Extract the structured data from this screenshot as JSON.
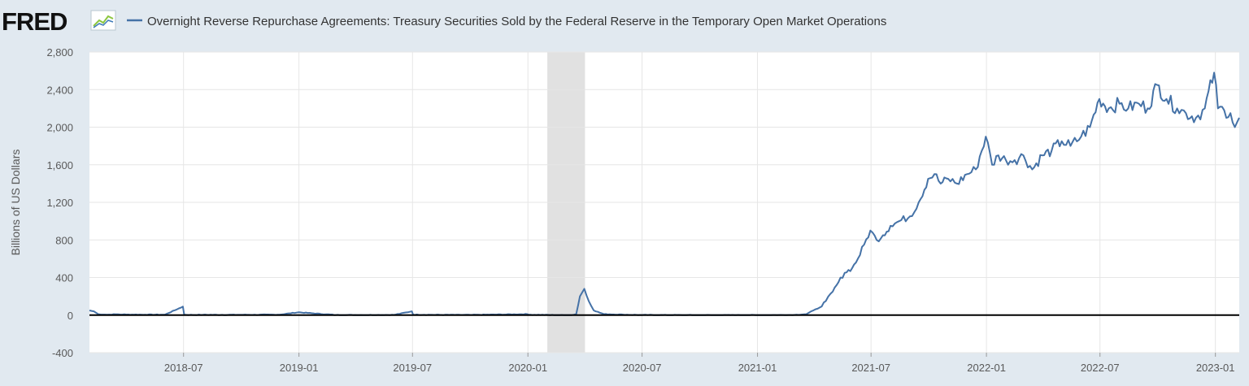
{
  "header": {
    "logo_text": "FRED",
    "logo_icon": "line-chart-icon"
  },
  "chart_data": {
    "type": "line",
    "title": "Overnight Reverse Repurchase Agreements: Treasury Securities Sold by the Federal Reserve in the Temporary Open Market Operations",
    "ylabel": "Billions of US Dollars",
    "xlabel": "",
    "ylim": [
      -400,
      2800
    ],
    "xlim": [
      "2018-02-01",
      "2023-02-08"
    ],
    "yticks": [
      -400,
      0,
      400,
      800,
      1200,
      1600,
      2000,
      2400,
      2800
    ],
    "ytick_labels": [
      "-400",
      "0",
      "400",
      "800",
      "1,200",
      "1,600",
      "2,000",
      "2,400",
      "2,800"
    ],
    "xticks": [
      "2018-07-01",
      "2019-01-01",
      "2019-07-01",
      "2020-01-01",
      "2020-07-01",
      "2021-01-01",
      "2021-07-01",
      "2022-01-01",
      "2022-07-01",
      "2023-01-01"
    ],
    "xtick_labels": [
      "2018-07",
      "2019-01",
      "2019-07",
      "2020-01",
      "2020-07",
      "2021-01",
      "2021-07",
      "2022-01",
      "2022-07",
      "2023-01"
    ],
    "grid": true,
    "legend": "top-left",
    "recession": {
      "start": "2020-02-01",
      "end": "2020-04-01"
    },
    "colors": {
      "line": "#4572a7",
      "recession": "#e1e1e1",
      "zero_line": "#000000",
      "background": "#e1e9f0",
      "plot": "#ffffff",
      "grid": "#e6e6e6"
    },
    "series": [
      {
        "name": "Overnight Reverse Repurchase Agreements: Treasury Securities Sold by the Federal Reserve in the Temporary Open Market Operations",
        "x": [
          "2018-02-01",
          "2018-02-08",
          "2018-02-15",
          "2018-03-01",
          "2018-03-15",
          "2018-04-01",
          "2018-05-01",
          "2018-06-01",
          "2018-06-30",
          "2018-07-02",
          "2018-07-06",
          "2018-08-01",
          "2018-10-01",
          "2018-12-01",
          "2018-12-31",
          "2019-03-01",
          "2019-06-01",
          "2019-06-30",
          "2019-07-02",
          "2019-08-01",
          "2019-10-01",
          "2019-12-31",
          "2020-01-02",
          "2020-02-15",
          "2020-03-10",
          "2020-03-18",
          "2020-03-24",
          "2020-03-31",
          "2020-04-07",
          "2020-04-15",
          "2020-05-01",
          "2020-06-01",
          "2020-07-01",
          "2020-10-01",
          "2021-01-01",
          "2021-03-01",
          "2021-03-20",
          "2021-03-31",
          "2021-04-10",
          "2021-04-20",
          "2021-05-01",
          "2021-05-10",
          "2021-05-20",
          "2021-06-01",
          "2021-06-10",
          "2021-06-20",
          "2021-06-30",
          "2021-07-10",
          "2021-07-20",
          "2021-08-01",
          "2021-08-15",
          "2021-09-01",
          "2021-09-15",
          "2021-09-30",
          "2021-10-10",
          "2021-10-20",
          "2021-11-01",
          "2021-11-15",
          "2021-12-01",
          "2021-12-15",
          "2021-12-31",
          "2022-01-10",
          "2022-01-20",
          "2022-02-01",
          "2022-02-15",
          "2022-03-01",
          "2022-03-15",
          "2022-03-31",
          "2022-04-15",
          "2022-05-01",
          "2022-05-15",
          "2022-06-01",
          "2022-06-15",
          "2022-06-30",
          "2022-07-15",
          "2022-08-01",
          "2022-08-15",
          "2022-09-01",
          "2022-09-15",
          "2022-09-30",
          "2022-10-15",
          "2022-11-01",
          "2022-11-15",
          "2022-12-01",
          "2022-12-15",
          "2022-12-30",
          "2023-01-05",
          "2023-01-15",
          "2023-01-25",
          "2023-02-01",
          "2023-02-08"
        ],
        "values": [
          50,
          40,
          10,
          5,
          8,
          6,
          5,
          4,
          90,
          5,
          2,
          3,
          3,
          5,
          30,
          1,
          2,
          40,
          5,
          3,
          2,
          10,
          5,
          0,
          0,
          10,
          200,
          280,
          150,
          50,
          10,
          5,
          1,
          0,
          0,
          2,
          10,
          50,
          80,
          150,
          250,
          350,
          450,
          500,
          600,
          750,
          900,
          800,
          850,
          950,
          1000,
          1050,
          1200,
          1450,
          1500,
          1400,
          1450,
          1400,
          1500,
          1550,
          1900,
          1600,
          1700,
          1650,
          1650,
          1700,
          1550,
          1700,
          1750,
          1850,
          1800,
          1900,
          2000,
          2300,
          2200,
          2250,
          2200,
          2250,
          2200,
          2450,
          2300,
          2200,
          2150,
          2100,
          2200,
          2580,
          2200,
          2180,
          2150,
          2000,
          2100
        ]
      }
    ]
  }
}
